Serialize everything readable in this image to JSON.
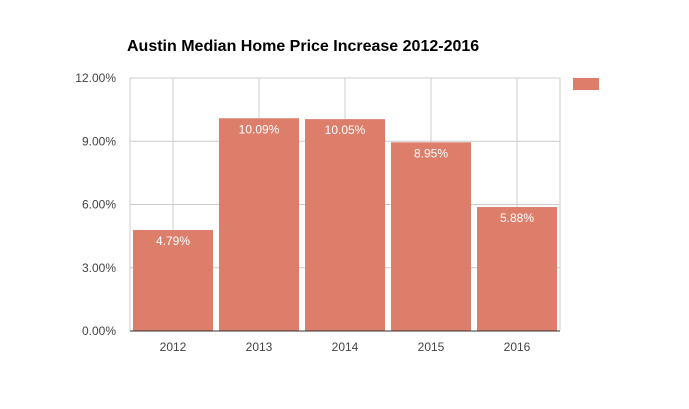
{
  "chart_data": {
    "type": "bar",
    "title": "Austin Median Home Price Increase 2012-2016",
    "categories": [
      "2012",
      "2013",
      "2014",
      "2015",
      "2016"
    ],
    "values": [
      4.79,
      10.09,
      10.05,
      8.95,
      5.88
    ],
    "data_labels": [
      "4.79%",
      "10.09%",
      "10.05%",
      "8.95%",
      "5.88%"
    ],
    "ylim": [
      0,
      12
    ],
    "y_ticks": [
      0,
      3,
      6,
      9,
      12
    ],
    "y_tick_labels": [
      "0.00%",
      "3.00%",
      "6.00%",
      "9.00%",
      "12.00%"
    ],
    "xlabel": "",
    "ylabel": "",
    "grid": true,
    "legend": "top-right",
    "series": [
      {
        "values": [
          4.79,
          10.09,
          10.05,
          8.95,
          5.88
        ]
      }
    ],
    "colors": {
      "bar": "#dd7e6b",
      "grid": "#cccccc",
      "axis": "#333333"
    }
  }
}
